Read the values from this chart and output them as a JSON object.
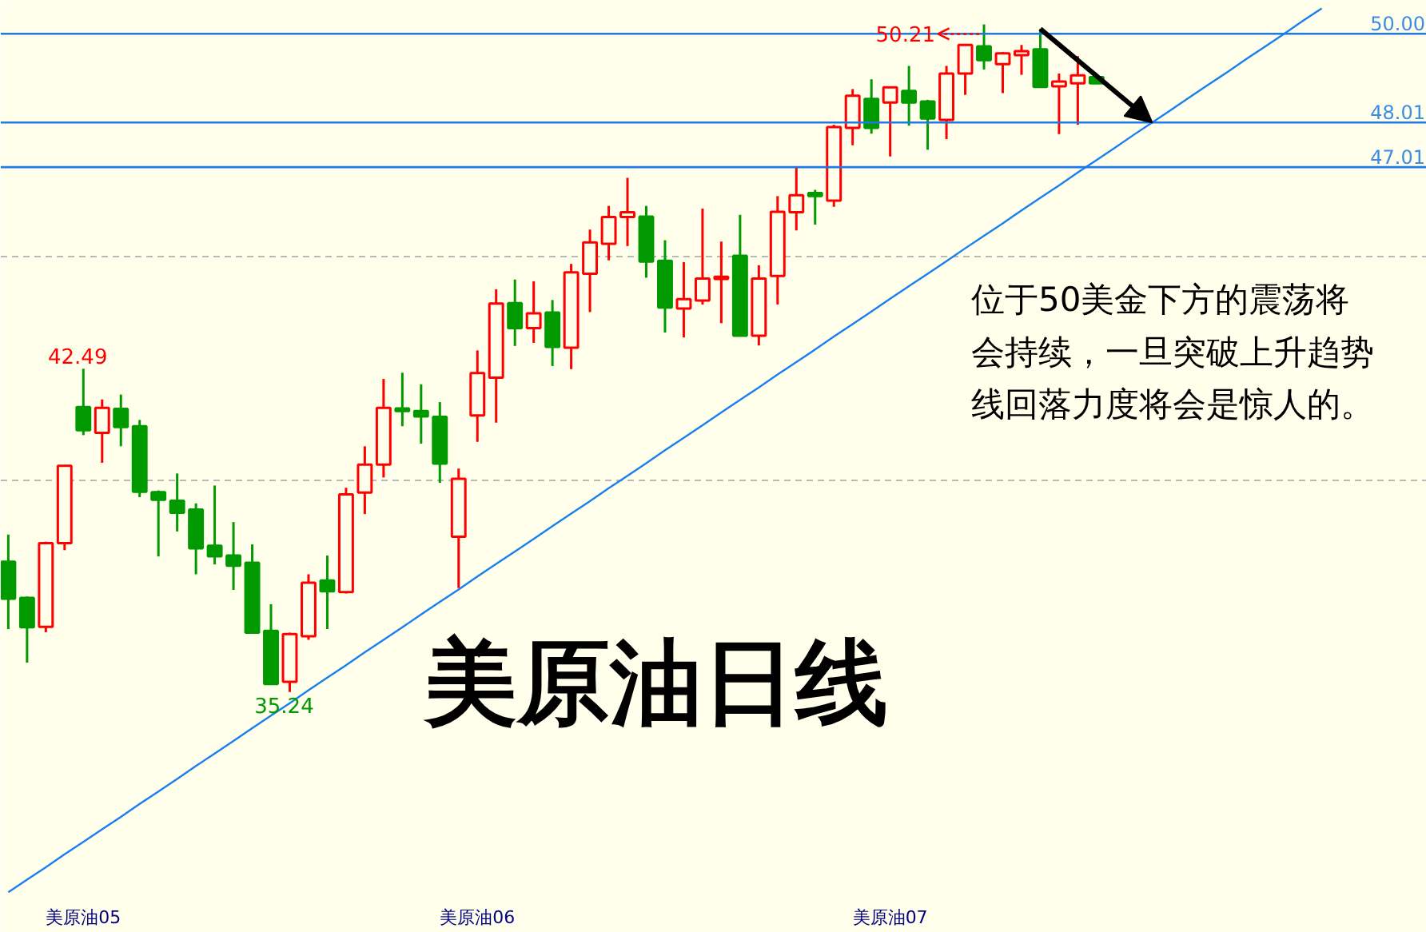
{
  "chart_data": {
    "type": "candlestick",
    "title": "美原油日线",
    "categories": [
      null,
      null,
      null,
      null,
      "美原油05",
      null,
      null,
      null,
      null,
      null,
      null,
      null,
      null,
      null,
      null,
      null,
      null,
      null,
      null,
      null,
      null,
      null,
      null,
      null,
      null,
      "美原油06",
      null,
      null,
      null,
      null,
      null,
      null,
      null,
      null,
      null,
      null,
      null,
      null,
      null,
      null,
      null,
      null,
      null,
      null,
      null,
      null,
      null,
      "美原油07",
      null,
      null,
      null,
      null,
      null,
      null,
      null,
      null,
      null,
      null,
      null,
      null,
      null,
      null,
      null,
      null,
      null,
      null,
      null,
      null,
      null,
      null,
      null,
      null,
      null,
      null,
      null,
      null
    ],
    "ohlc": [
      [
        38.16,
        38.77,
        36.65,
        37.33
      ],
      [
        37.35,
        37.38,
        35.9,
        36.69
      ],
      [
        36.7,
        38.61,
        36.58,
        38.58
      ],
      [
        38.58,
        40.33,
        38.42,
        40.31
      ],
      [
        41.63,
        42.49,
        41.0,
        41.11
      ],
      [
        41.05,
        41.8,
        40.38,
        41.61
      ],
      [
        41.59,
        41.91,
        40.75,
        41.18
      ],
      [
        41.2,
        41.34,
        39.61,
        39.73
      ],
      [
        39.72,
        39.76,
        38.28,
        39.55
      ],
      [
        39.53,
        40.14,
        38.84,
        39.26
      ],
      [
        39.33,
        39.47,
        37.88,
        38.46
      ],
      [
        38.52,
        39.87,
        38.1,
        38.28
      ],
      [
        38.3,
        39.05,
        37.53,
        38.07
      ],
      [
        38.14,
        38.55,
        36.55,
        36.57
      ],
      [
        36.61,
        37.21,
        35.4,
        35.42
      ],
      [
        35.47,
        36.57,
        35.24,
        36.54
      ],
      [
        36.49,
        37.88,
        36.41,
        37.69
      ],
      [
        37.74,
        38.3,
        36.65,
        37.5
      ],
      [
        37.48,
        39.82,
        37.45,
        39.67
      ],
      [
        39.71,
        40.75,
        39.23,
        40.34
      ],
      [
        40.34,
        42.26,
        40.05,
        41.61
      ],
      [
        41.6,
        42.4,
        41.2,
        41.54
      ],
      [
        41.54,
        42.14,
        40.81,
        41.42
      ],
      [
        41.41,
        41.74,
        39.93,
        40.36
      ],
      [
        38.72,
        40.25,
        37.57,
        40.02
      ],
      [
        41.44,
        42.9,
        40.85,
        42.39
      ],
      [
        42.29,
        44.27,
        41.28,
        43.95
      ],
      [
        43.96,
        44.49,
        43.0,
        43.4
      ],
      [
        43.4,
        44.45,
        43.07,
        43.73
      ],
      [
        43.75,
        44.03,
        42.55,
        42.98
      ],
      [
        42.96,
        44.84,
        42.48,
        44.65
      ],
      [
        44.62,
        45.61,
        43.76,
        45.32
      ],
      [
        45.29,
        46.14,
        44.92,
        45.89
      ],
      [
        45.89,
        46.77,
        45.24,
        46.0
      ],
      [
        45.9,
        46.14,
        44.53,
        44.89
      ],
      [
        44.91,
        45.37,
        43.3,
        43.86
      ],
      [
        43.84,
        44.88,
        43.19,
        44.05
      ],
      [
        44.02,
        46.08,
        43.93,
        44.51
      ],
      [
        44.5,
        45.34,
        43.51,
        44.55
      ],
      [
        45.02,
        45.94,
        43.22,
        43.23
      ],
      [
        43.23,
        44.81,
        43.01,
        44.51
      ],
      [
        44.57,
        46.36,
        43.93,
        46.01
      ],
      [
        46.0,
        47.0,
        45.59,
        46.38
      ],
      [
        46.43,
        46.5,
        45.72,
        46.36
      ],
      [
        46.26,
        47.96,
        46.12,
        47.91
      ],
      [
        47.89,
        48.76,
        47.5,
        48.61
      ],
      [
        48.54,
        48.98,
        47.76,
        47.89
      ],
      [
        48.46,
        48.81,
        47.25,
        48.8
      ],
      [
        48.72,
        49.28,
        47.94,
        48.46
      ],
      [
        48.48,
        48.52,
        47.4,
        48.1
      ],
      [
        48.07,
        49.28,
        47.64,
        49.11
      ],
      [
        49.11,
        49.76,
        48.63,
        49.75
      ],
      [
        49.72,
        50.21,
        49.2,
        49.41
      ],
      [
        49.32,
        49.59,
        48.67,
        49.56
      ],
      [
        49.52,
        49.75,
        49.08,
        49.61
      ],
      [
        49.65,
        50.11,
        48.8,
        48.81
      ],
      [
        48.82,
        49.11,
        47.75,
        48.93
      ],
      [
        48.89,
        49.5,
        47.96,
        49.07
      ],
      [
        49.03,
        49.03,
        48.89,
        48.89
      ],
      null,
      null,
      null,
      null,
      null,
      null,
      null,
      null,
      null,
      null,
      null,
      null,
      null,
      null,
      null,
      null,
      null
    ],
    "colors": [
      "#009900",
      "#009900",
      "#ff0000",
      "#ff0000",
      "#009900",
      "#ff0000",
      "#009900",
      "#009900",
      "#009900",
      "#009900",
      "#009900",
      "#009900",
      "#009900",
      "#009900",
      "#009900",
      "#ff0000",
      "#ff0000",
      "#009900",
      "#ff0000",
      "#ff0000",
      "#ff0000",
      "#009900",
      "#009900",
      "#009900",
      "#ff0000",
      "#ff0000",
      "#ff0000",
      "#009900",
      "#ff0000",
      "#009900",
      "#ff0000",
      "#ff0000",
      "#ff0000",
      "#ff0000",
      "#009900",
      "#009900",
      "#ff0000",
      "#ff0000",
      "#ff0000",
      "#009900",
      "#ff0000",
      "#ff0000",
      "#ff0000",
      "#009900",
      "#ff0000",
      "#ff0000",
      "#009900",
      "#ff0000",
      "#009900",
      "#009900",
      "#ff0000",
      "#ff0000",
      "#009900",
      "#ff0000",
      "#ff0000",
      "#009900",
      "#ff0000",
      "#ff0000",
      "#009900",
      null,
      null,
      null,
      null,
      null,
      null,
      null,
      null,
      null,
      null,
      null,
      null,
      null,
      null,
      null,
      null,
      null
    ],
    "series": [
      {
        "type": "line",
        "color": "#1a7ff0",
        "values": [
          30.75,
          31.03,
          31.31,
          31.6,
          31.88,
          32.16,
          32.44,
          32.73,
          33.01,
          33.29,
          33.58,
          33.86,
          34.14,
          34.43,
          34.71,
          34.99,
          35.28,
          35.56,
          35.84,
          36.13,
          36.41,
          36.69,
          36.98,
          37.26,
          37.54,
          37.83,
          38.11,
          38.39,
          38.67,
          38.96,
          39.24,
          39.52,
          39.81,
          40.09,
          40.37,
          40.66,
          40.94,
          41.22,
          41.51,
          41.79,
          42.07,
          42.36,
          42.64,
          42.92,
          43.21,
          43.49,
          43.77,
          44.06,
          44.34,
          44.62,
          44.9,
          45.19,
          45.47,
          45.75,
          46.04,
          46.32,
          46.6,
          46.89,
          47.17,
          47.45,
          47.74,
          48.02,
          48.3,
          48.59,
          48.87,
          49.15,
          49.44,
          49.72,
          50.0,
          50.29,
          50.57,
          null,
          null,
          null,
          null,
          null
        ]
      }
    ],
    "ylim": [
      30.7,
      50.74
    ],
    "yticks": [
      {
        "value": 40,
        "label": null
      },
      {
        "value": 45,
        "label": null
      }
    ],
    "tick_labels": "x",
    "grid": "y",
    "ref_lines": [
      {
        "axis": "y",
        "value": 50,
        "label": "50.00",
        "color": "#1e78e6"
      },
      {
        "axis": "y",
        "value": 48.01,
        "label": "48.01",
        "color": "#1e78e6"
      },
      {
        "axis": "y",
        "value": 47.01,
        "label": "47.01",
        "color": "#1e78e6"
      }
    ],
    "annotations": [
      {
        "text": "42.49",
        "y": 42.49
      },
      {
        "text": "35.24",
        "y": 35.24
      },
      "50.21",
      "位于50美金下方的震荡将会持续，一旦突破上升趋势线回落力度将会是惊人的。"
    ]
  }
}
